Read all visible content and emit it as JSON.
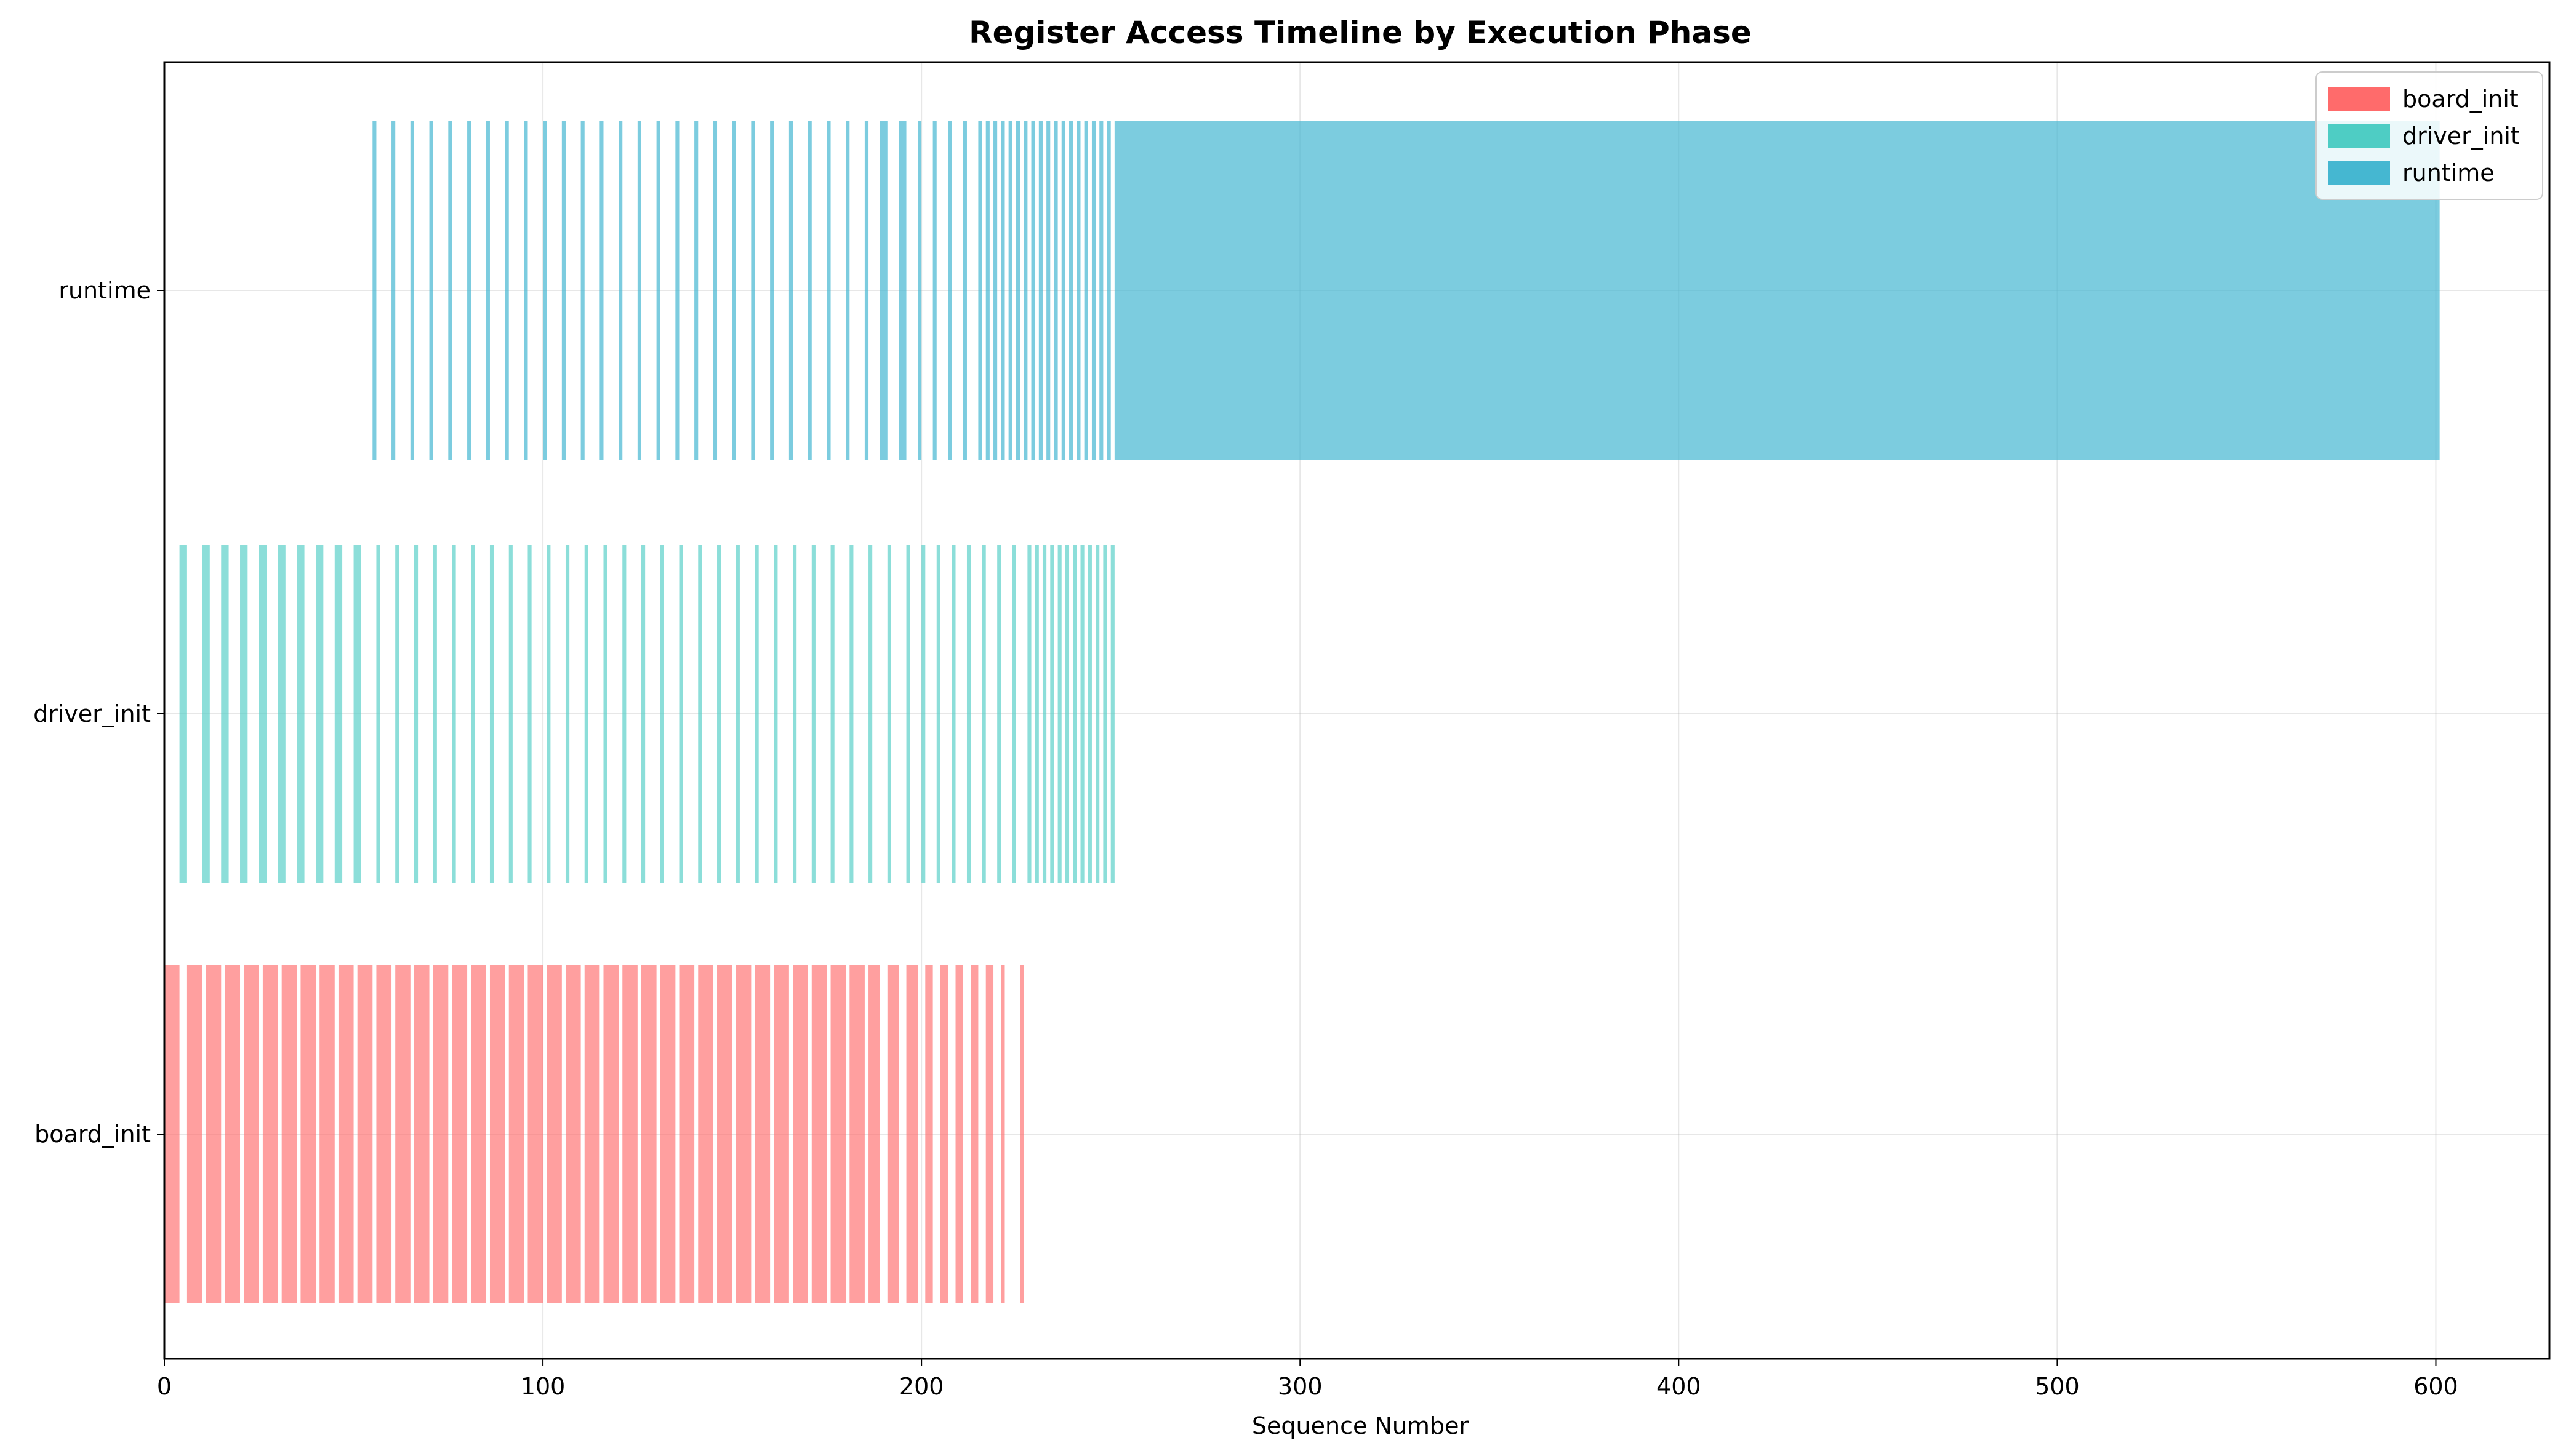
{
  "chart_data": {
    "type": "timeline",
    "title": "Register Access Timeline by Execution Phase",
    "xlabel": "Sequence Number",
    "ylabel": "",
    "xlim": [
      0,
      630
    ],
    "x_ticks": [
      0,
      100,
      200,
      300,
      400,
      500,
      600
    ],
    "grid": true,
    "legend": {
      "placement": "top-right",
      "entries": [
        {
          "label": "board_init",
          "color": "#ff6b6b"
        },
        {
          "label": "driver_init",
          "color": "#4ecdc4"
        },
        {
          "label": "runtime",
          "color": "#45b7d1"
        }
      ]
    },
    "categories": [
      "board_init",
      "driver_init",
      "runtime"
    ],
    "series": [
      {
        "name": "board_init",
        "color": "#ff6b6b",
        "alpha": 0.65,
        "intervals": [
          [
            0,
            4
          ],
          [
            6,
            10
          ],
          [
            11,
            15
          ],
          [
            16,
            20
          ],
          [
            21,
            25
          ],
          [
            26,
            30
          ],
          [
            31,
            35
          ],
          [
            36,
            40
          ],
          [
            41,
            45
          ],
          [
            46,
            50
          ],
          [
            51,
            55
          ],
          [
            56,
            60
          ],
          [
            61,
            65
          ],
          [
            66,
            70
          ],
          [
            71,
            75
          ],
          [
            76,
            80
          ],
          [
            81,
            85
          ],
          [
            86,
            90
          ],
          [
            91,
            95
          ],
          [
            96,
            100
          ],
          [
            101,
            105
          ],
          [
            106,
            110
          ],
          [
            111,
            115
          ],
          [
            116,
            120
          ],
          [
            121,
            125
          ],
          [
            126,
            130
          ],
          [
            131,
            135
          ],
          [
            136,
            140
          ],
          [
            141,
            145
          ],
          [
            146,
            150
          ],
          [
            151,
            155
          ],
          [
            156,
            160
          ],
          [
            161,
            165
          ],
          [
            166,
            170
          ],
          [
            171,
            175
          ],
          [
            176,
            180
          ],
          [
            181,
            185
          ],
          [
            186,
            189
          ],
          [
            191,
            194
          ],
          [
            196,
            199
          ],
          [
            201,
            203
          ],
          [
            205,
            207
          ],
          [
            209,
            211
          ],
          [
            213,
            215
          ],
          [
            217,
            219
          ],
          [
            221,
            222
          ],
          [
            226,
            227
          ]
        ]
      },
      {
        "name": "driver_init",
        "color": "#4ecdc4",
        "alpha": 0.65,
        "intervals": [
          [
            4,
            6
          ],
          [
            10,
            12
          ],
          [
            15,
            17
          ],
          [
            20,
            22
          ],
          [
            25,
            27
          ],
          [
            30,
            32
          ],
          [
            35,
            37
          ],
          [
            40,
            42
          ],
          [
            45,
            47
          ],
          [
            50,
            52
          ],
          [
            56,
            57
          ],
          [
            61,
            62
          ],
          [
            66,
            67
          ],
          [
            71,
            72
          ],
          [
            76,
            77
          ],
          [
            81,
            82
          ],
          [
            86,
            87
          ],
          [
            91,
            92
          ],
          [
            96,
            97
          ],
          [
            101,
            102
          ],
          [
            106,
            107
          ],
          [
            111,
            112
          ],
          [
            116,
            117
          ],
          [
            121,
            122
          ],
          [
            126,
            127
          ],
          [
            131,
            132
          ],
          [
            136,
            137
          ],
          [
            141,
            142
          ],
          [
            146,
            147
          ],
          [
            151,
            152
          ],
          [
            156,
            157
          ],
          [
            161,
            162
          ],
          [
            166,
            167
          ],
          [
            171,
            172
          ],
          [
            176,
            177
          ],
          [
            181,
            182
          ],
          [
            186,
            187
          ],
          [
            191,
            192
          ],
          [
            196,
            197
          ],
          [
            200,
            201
          ],
          [
            204,
            205
          ],
          [
            208,
            209
          ],
          [
            212,
            213
          ],
          [
            216,
            217
          ],
          [
            220,
            221
          ],
          [
            224,
            225
          ],
          [
            228,
            229
          ],
          [
            230,
            231
          ],
          [
            232,
            233
          ],
          [
            234,
            235
          ],
          [
            236,
            237
          ],
          [
            238,
            239
          ],
          [
            240,
            241
          ],
          [
            242,
            243
          ],
          [
            244,
            245
          ],
          [
            246,
            247
          ],
          [
            248,
            249
          ],
          [
            250,
            251
          ]
        ]
      },
      {
        "name": "runtime",
        "color": "#45b7d1",
        "alpha": 0.7,
        "intervals": [
          [
            55,
            56
          ],
          [
            60,
            61
          ],
          [
            65,
            66
          ],
          [
            70,
            71
          ],
          [
            75,
            76
          ],
          [
            80,
            81
          ],
          [
            85,
            86
          ],
          [
            90,
            91
          ],
          [
            95,
            96
          ],
          [
            100,
            101
          ],
          [
            105,
            106
          ],
          [
            110,
            111
          ],
          [
            115,
            116
          ],
          [
            120,
            121
          ],
          [
            125,
            126
          ],
          [
            130,
            131
          ],
          [
            135,
            136
          ],
          [
            140,
            141
          ],
          [
            145,
            146
          ],
          [
            150,
            151
          ],
          [
            155,
            156
          ],
          [
            160,
            161
          ],
          [
            165,
            166
          ],
          [
            170,
            171
          ],
          [
            175,
            176
          ],
          [
            180,
            181
          ],
          [
            185,
            186
          ],
          [
            189,
            191
          ],
          [
            194,
            196
          ],
          [
            199,
            200
          ],
          [
            203,
            204
          ],
          [
            207,
            208
          ],
          [
            211,
            212
          ],
          [
            215,
            216
          ],
          [
            217,
            218
          ],
          [
            219,
            220
          ],
          [
            221,
            222
          ],
          [
            223,
            224
          ],
          [
            225,
            226
          ],
          [
            227,
            228
          ],
          [
            229,
            230
          ],
          [
            231,
            232
          ],
          [
            233,
            234
          ],
          [
            235,
            236
          ],
          [
            237,
            238
          ],
          [
            239,
            240
          ],
          [
            241,
            242
          ],
          [
            243,
            244
          ],
          [
            245,
            246
          ],
          [
            247,
            248
          ],
          [
            249,
            250
          ],
          [
            251,
            601
          ]
        ]
      }
    ]
  }
}
